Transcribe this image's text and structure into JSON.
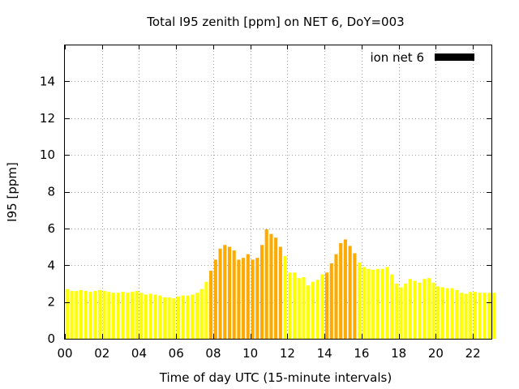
{
  "chart_data": {
    "type": "bar",
    "title": "Total I95 zenith [ppm] on NET 6, DoY=003",
    "xlabel": "Time of day UTC (15-minute intervals)",
    "ylabel": "I95 [ppm]",
    "xlim": [
      0,
      23.0
    ],
    "ylim": [
      0,
      16
    ],
    "xticks": [
      "00",
      "02",
      "04",
      "06",
      "08",
      "10",
      "12",
      "14",
      "16",
      "18",
      "20",
      "22"
    ],
    "yticks": [
      "0",
      "2",
      "4",
      "6",
      "8",
      "10",
      "12",
      "14"
    ],
    "grid": true,
    "legend": {
      "position": "top-right",
      "label": "ion net 6",
      "color": "#000000"
    },
    "interval_hours": 0.25,
    "colors": {
      "normal": "#ffff00",
      "elevated": "#ffaa00",
      "high": "#f49b00"
    },
    "series": [
      {
        "values": [
          2.7,
          2.6,
          2.6,
          2.65,
          2.6,
          2.55,
          2.6,
          2.65,
          2.6,
          2.55,
          2.5,
          2.5,
          2.55,
          2.5,
          2.55,
          2.6,
          2.5,
          2.4,
          2.45,
          2.4,
          2.35,
          2.25,
          2.25,
          2.2,
          2.3,
          2.35,
          2.35,
          2.4,
          2.5,
          2.7,
          3.1,
          3.7,
          4.3,
          4.9,
          5.1,
          5.0,
          4.8,
          4.3,
          4.4,
          4.6,
          4.3,
          4.4,
          5.1,
          5.95,
          5.7,
          5.5,
          5.0,
          4.5,
          3.6,
          3.6,
          3.3,
          3.35,
          2.9,
          3.1,
          3.2,
          3.5,
          3.6,
          4.1,
          4.6,
          5.2,
          5.4,
          5.05,
          4.65,
          4.15,
          3.9,
          3.8,
          3.75,
          3.8,
          3.8,
          3.9,
          3.5,
          3.0,
          2.8,
          3.0,
          3.25,
          3.15,
          3.05,
          3.25,
          3.3,
          3.05,
          2.85,
          2.8,
          2.75,
          2.75,
          2.65,
          2.5,
          2.45,
          2.55,
          2.55,
          2.5,
          2.5,
          2.5,
          2.5
        ]
      }
    ],
    "elevated_ranges": [
      [
        7.75,
        11.75
      ],
      [
        14.0,
        15.75
      ]
    ]
  }
}
